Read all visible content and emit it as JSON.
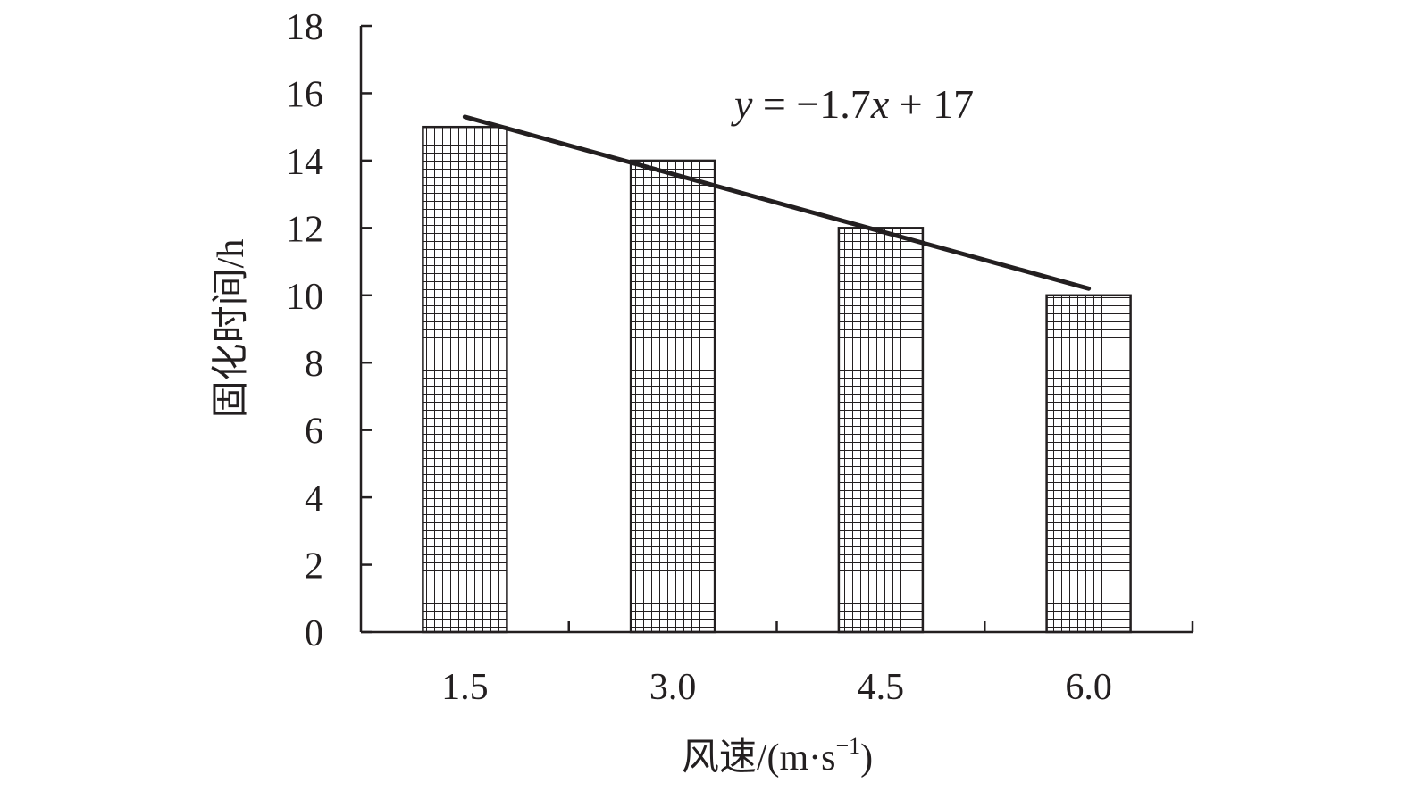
{
  "chart_data": {
    "type": "bar",
    "categories": [
      "1.5",
      "3.0",
      "4.5",
      "6.0"
    ],
    "values": [
      15,
      14,
      12,
      10
    ],
    "xlabel": "风速/(m·s",
    "xlabel_superscript": "−1",
    "xlabel_suffix": ")",
    "ylabel": "固化时间/h",
    "ylim": [
      0,
      18
    ],
    "yticks": [
      "0",
      "2",
      "4",
      "6",
      "8",
      "10",
      "12",
      "14",
      "16",
      "18"
    ],
    "trendline": {
      "type": "linear",
      "slope": -1.7,
      "intercept": 17,
      "equation_parts": {
        "y": "y",
        "eq": " = −1.7",
        "x": "x",
        "tail": " + 17"
      }
    },
    "grid": false,
    "legend": "none",
    "bar_fill": "crosshatch-grid",
    "colors": {
      "axis": "#231f20",
      "bar_stroke": "#231f20",
      "hatch": "#231f20",
      "trendline": "#231f20",
      "background": "#ffffff"
    }
  }
}
